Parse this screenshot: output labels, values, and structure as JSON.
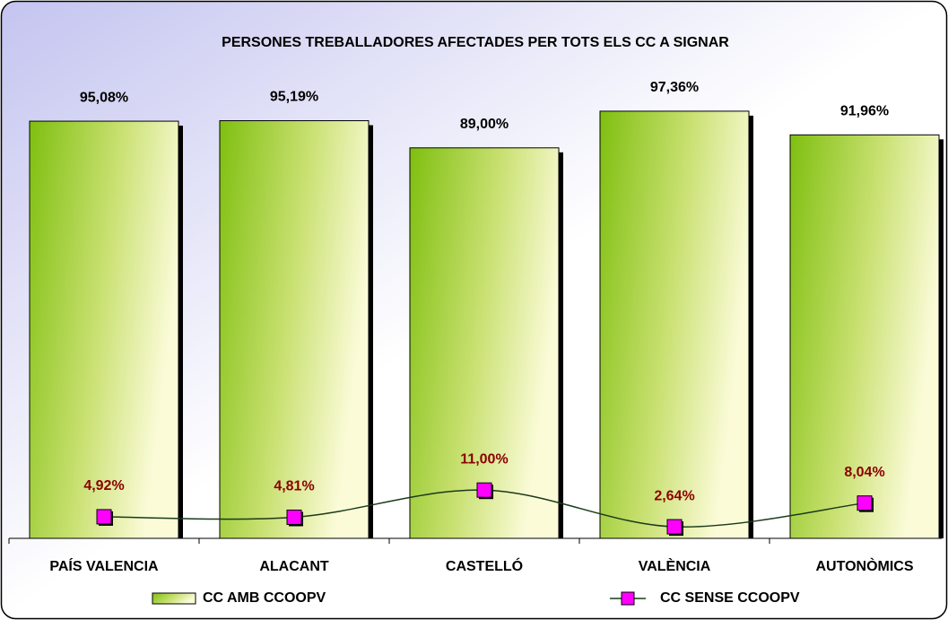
{
  "chart_data": {
    "type": "bar",
    "title": "PERSONES TREBALLADORES AFECTADES PER TOTS ELS CC A SIGNAR",
    "categories": [
      "PAÍS VALENCIA",
      "ALACANT",
      "CASTELLÓ",
      "VALÈNCIA",
      "AUTONÒMICS"
    ],
    "ylim": [
      0,
      100
    ],
    "series": [
      {
        "name": "CC AMB CCOOPV",
        "type": "bar",
        "color": "#8cc820",
        "values": [
          95.08,
          95.19,
          89.0,
          97.36,
          91.96
        ],
        "value_labels": [
          "95,08%",
          "95,19%",
          "89,00%",
          "97,36%",
          "91,96%"
        ]
      },
      {
        "name": "CC SENSE CCOOPV",
        "type": "line",
        "color": "#ff00ff",
        "values": [
          4.92,
          4.81,
          11.0,
          2.64,
          8.04
        ],
        "value_labels": [
          "4,92%",
          "4,81%",
          "11,00%",
          "2,64%",
          "8,04%"
        ]
      }
    ]
  }
}
